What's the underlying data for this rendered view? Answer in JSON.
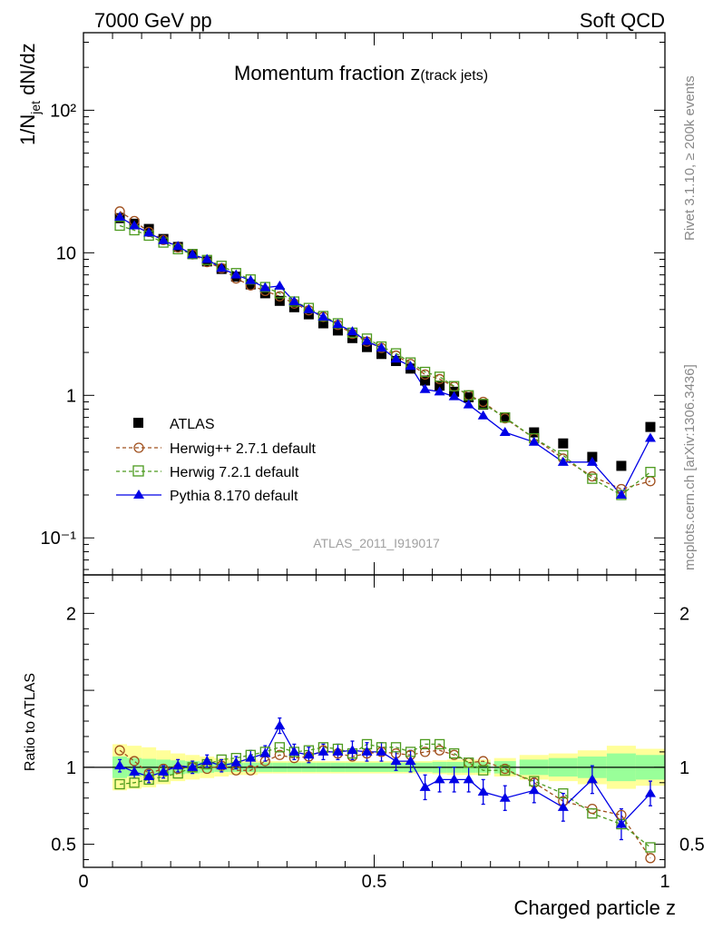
{
  "header": {
    "left": "7000 GeV pp",
    "right": "Soft QCD"
  },
  "side_labels": {
    "rivet": "Rivet 3.1.10, ≥ 200k events",
    "mcplots": "mcplots.cern.ch [arXiv:1306.3436]"
  },
  "chart_data": {
    "type": "scatter",
    "title_main": "Momentum fraction z",
    "title_sub": "(track jets)",
    "analysis_id": "ATLAS_2011_I919017",
    "xlabel": "Charged particle z",
    "ylabel_parts": [
      "1/N",
      "jet",
      " dN/dz"
    ],
    "ratio_ylabel": "Ratio to ATLAS",
    "xlim": [
      0,
      1
    ],
    "ylim": [
      0.055,
      350
    ],
    "yscale": "log",
    "ratio_ylim": [
      0.35,
      2.25
    ],
    "x_ticks": [
      "0",
      "0.5",
      "1"
    ],
    "y_ticks": [
      "10⁻¹",
      "1",
      "10",
      "10²"
    ],
    "ratio_ticks": [
      "0.5",
      "1",
      "2"
    ],
    "colors": {
      "atlas": "#000000",
      "herwigpp": "#a0501e",
      "herwig7": "#4c9a1e",
      "pythia": "#0000e6",
      "band_outer": "#ffff99",
      "band_inner": "#99ff99"
    },
    "x": [
      0.0625,
      0.0875,
      0.1125,
      0.1375,
      0.1625,
      0.1875,
      0.2125,
      0.2375,
      0.2625,
      0.2875,
      0.3125,
      0.3375,
      0.3625,
      0.3875,
      0.4125,
      0.4375,
      0.4625,
      0.4875,
      0.5125,
      0.5375,
      0.5625,
      0.5875,
      0.6125,
      0.6375,
      0.6625,
      0.6875,
      0.725,
      0.775,
      0.825,
      0.875,
      0.925,
      0.975
    ],
    "atlas": [
      17.5,
      16.0,
      14.7,
      12.5,
      11.0,
      9.8,
      8.7,
      7.7,
      6.8,
      6.0,
      5.2,
      4.6,
      4.15,
      3.7,
      3.2,
      2.85,
      2.52,
      2.18,
      1.95,
      1.74,
      1.54,
      1.27,
      1.17,
      1.06,
      0.97,
      0.86,
      0.7,
      0.55,
      0.46,
      0.37,
      0.32,
      0.6
    ],
    "band_inner": [
      0.07,
      0.06,
      0.055,
      0.05,
      0.045,
      0.04,
      0.035,
      0.03,
      0.03,
      0.03,
      0.03,
      0.03,
      0.03,
      0.03,
      0.03,
      0.03,
      0.03,
      0.03,
      0.03,
      0.03,
      0.03,
      0.03,
      0.035,
      0.035,
      0.035,
      0.035,
      0.04,
      0.05,
      0.06,
      0.07,
      0.09,
      0.08
    ],
    "band_outer": [
      0.15,
      0.14,
      0.13,
      0.11,
      0.09,
      0.08,
      0.07,
      0.06,
      0.05,
      0.05,
      0.04,
      0.04,
      0.04,
      0.04,
      0.04,
      0.04,
      0.04,
      0.04,
      0.04,
      0.04,
      0.04,
      0.04,
      0.045,
      0.05,
      0.05,
      0.05,
      0.06,
      0.08,
      0.09,
      0.11,
      0.14,
      0.12
    ],
    "series": [
      {
        "name": "ATLAS",
        "key": "atlas"
      },
      {
        "name": "Herwig++ 2.7.1 default",
        "key": "herwigpp",
        "values": [
          19.5,
          16.7,
          14.0,
          12.3,
          10.9,
          9.75,
          8.6,
          7.8,
          6.6,
          5.9,
          5.4,
          4.95,
          4.4,
          3.95,
          3.55,
          3.12,
          2.7,
          2.38,
          2.15,
          1.9,
          1.66,
          1.4,
          1.3,
          1.15,
          1.0,
          0.9,
          0.69,
          0.5,
          0.36,
          0.27,
          0.22,
          0.25
        ],
        "ratio": [
          1.11,
          1.04,
          0.96,
          0.99,
          0.99,
          1.0,
          0.99,
          1.01,
          0.98,
          0.98,
          1.04,
          1.08,
          1.06,
          1.07,
          1.11,
          1.09,
          1.07,
          1.09,
          1.1,
          1.09,
          1.08,
          1.1,
          1.11,
          1.08,
          1.03,
          1.04,
          0.99,
          0.9,
          0.78,
          0.73,
          0.69,
          0.41
        ]
      },
      {
        "name": "Herwig 7.2.1 default",
        "key": "herwig7",
        "values": [
          15.5,
          14.4,
          13.2,
          11.8,
          10.6,
          9.8,
          8.9,
          8.1,
          7.2,
          6.5,
          5.75,
          5.2,
          4.55,
          4.1,
          3.6,
          3.2,
          2.75,
          2.5,
          2.2,
          1.97,
          1.7,
          1.46,
          1.35,
          1.16,
          1.0,
          0.87,
          0.7,
          0.5,
          0.38,
          0.26,
          0.2,
          0.29
        ],
        "ratio": [
          0.89,
          0.9,
          0.92,
          0.94,
          0.96,
          1.0,
          1.02,
          1.05,
          1.06,
          1.08,
          1.1,
          1.13,
          1.1,
          1.11,
          1.13,
          1.12,
          1.09,
          1.15,
          1.13,
          1.13,
          1.1,
          1.15,
          1.15,
          1.09,
          1.03,
          0.98,
          0.98,
          0.91,
          0.83,
          0.7,
          0.63,
          0.48
        ]
      },
      {
        "name": "Pythia 8.170 default",
        "key": "pythia",
        "values": [
          17.8,
          15.5,
          13.8,
          12.2,
          11.1,
          9.7,
          9.0,
          7.8,
          7.0,
          6.4,
          5.7,
          5.85,
          4.55,
          4.0,
          3.55,
          3.15,
          2.8,
          2.4,
          2.15,
          1.8,
          1.6,
          1.1,
          1.06,
          0.98,
          0.86,
          0.72,
          0.55,
          0.47,
          0.34,
          0.34,
          0.2,
          0.5
        ],
        "ratio": [
          1.01,
          0.97,
          0.94,
          0.97,
          1.01,
          1.0,
          1.04,
          1.01,
          1.03,
          1.06,
          1.09,
          1.27,
          1.1,
          1.08,
          1.1,
          1.1,
          1.11,
          1.1,
          1.1,
          1.04,
          1.04,
          0.87,
          0.92,
          0.92,
          0.92,
          0.84,
          0.8,
          0.85,
          0.74,
          0.92,
          0.63,
          0.83
        ],
        "err": [
          0.04,
          0.04,
          0.04,
          0.04,
          0.04,
          0.04,
          0.04,
          0.04,
          0.04,
          0.05,
          0.05,
          0.05,
          0.05,
          0.05,
          0.05,
          0.05,
          0.06,
          0.06,
          0.06,
          0.06,
          0.07,
          0.08,
          0.08,
          0.08,
          0.08,
          0.08,
          0.08,
          0.08,
          0.09,
          0.09,
          0.1,
          0.08
        ]
      }
    ]
  }
}
